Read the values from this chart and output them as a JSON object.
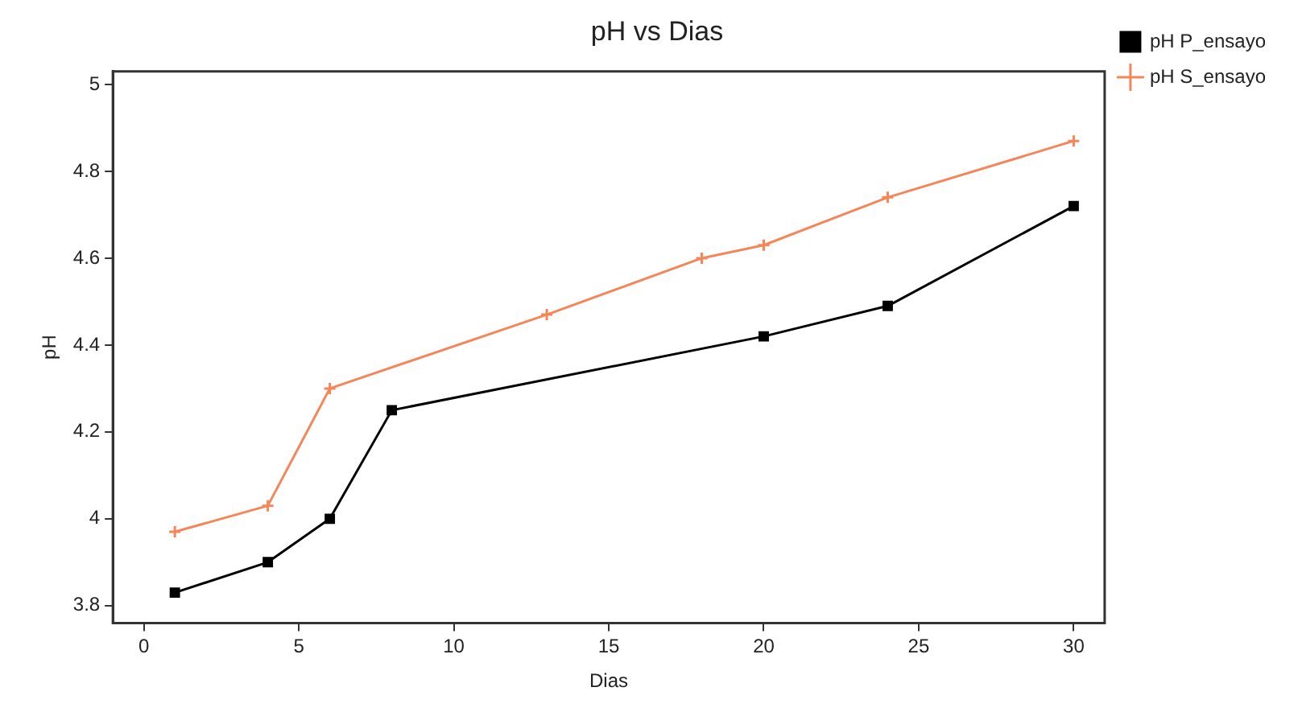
{
  "chart_data": {
    "type": "line",
    "title": "pH vs Dias",
    "xlabel": "Dias",
    "ylabel": "pH",
    "xlim": [
      -1,
      31
    ],
    "xticks": [
      0,
      5,
      10,
      15,
      20,
      25,
      30
    ],
    "ylim": [
      3.76,
      5.03
    ],
    "yticks": [
      {
        "value": 3.8,
        "label": "3.8"
      },
      4,
      {
        "value": 4.2,
        "label": "4.2"
      },
      {
        "value": 4.4,
        "label": "4.4"
      },
      {
        "value": 4.6,
        "label": "4.6"
      },
      {
        "value": 4.8,
        "label": "4.8"
      },
      5
    ],
    "grid": false,
    "legend": "right",
    "line_style": "solid",
    "series": [
      {
        "name": "pH P_ensayo",
        "color": "#000000",
        "marker": "square",
        "x": [
          1,
          4,
          6,
          8,
          20,
          24,
          30
        ],
        "values": [
          3.83,
          3.9,
          4.0,
          4.25,
          4.42,
          4.49,
          4.72
        ]
      },
      {
        "name": "pH S_ensayo",
        "color": "#f4865a",
        "marker": "cross",
        "x": [
          1,
          4,
          6,
          13,
          18,
          20,
          24,
          30
        ],
        "values": [
          3.97,
          4.03,
          4.3,
          4.47,
          4.6,
          4.63,
          4.74,
          4.87
        ]
      }
    ]
  }
}
